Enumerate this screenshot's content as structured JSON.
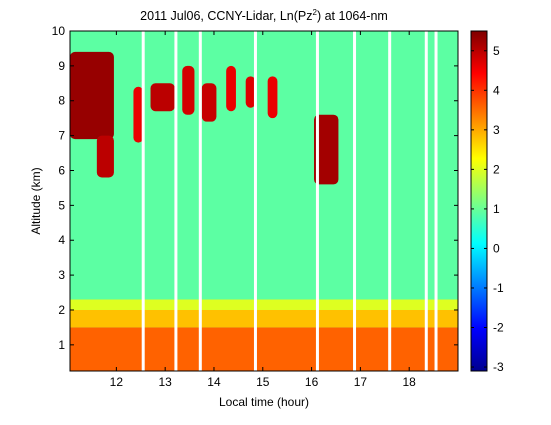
{
  "chart_data": {
    "type": "heatmap",
    "title_prefix": "2011 Jul06, CCNY-Lidar, Ln(Pz",
    "title_sup": "2",
    "title_suffix": ") at 1064-nm",
    "xlabel": "Local time (hour)",
    "ylabel": "Altitude (km)",
    "xlim": [
      11.05,
      19.0
    ],
    "ylim": [
      0.25,
      10
    ],
    "clim": [
      -3.1,
      5.5
    ],
    "x_ticks": [
      12,
      13,
      14,
      15,
      16,
      17,
      18
    ],
    "y_ticks": [
      1,
      2,
      3,
      4,
      5,
      6,
      7,
      8,
      9,
      10
    ],
    "colorbar_ticks": [
      5,
      4,
      3,
      2,
      1,
      0,
      -1,
      -2,
      -3
    ],
    "colormap": "jet",
    "background_value": 0.9,
    "boundary_layer": [
      {
        "alt_low": 0.25,
        "alt_high": 1.5,
        "value": 3.6
      },
      {
        "alt_low": 1.5,
        "alt_high": 2.0,
        "value": 2.8
      },
      {
        "alt_low": 2.0,
        "alt_high": 2.3,
        "value": 2.0
      }
    ],
    "cloud_layers": [
      {
        "t_start": 11.05,
        "t_end": 11.95,
        "alt_low": 6.9,
        "alt_high": 9.4,
        "value": 5.3
      },
      {
        "t_start": 11.6,
        "t_end": 11.95,
        "alt_low": 5.8,
        "alt_high": 7.0,
        "value": 5.0
      },
      {
        "t_start": 12.35,
        "t_end": 12.55,
        "alt_low": 6.8,
        "alt_high": 8.4,
        "value": 4.6
      },
      {
        "t_start": 12.7,
        "t_end": 13.2,
        "alt_low": 7.7,
        "alt_high": 8.5,
        "value": 5.0
      },
      {
        "t_start": 13.35,
        "t_end": 13.6,
        "alt_low": 7.6,
        "alt_high": 9.0,
        "value": 4.8
      },
      {
        "t_start": 13.75,
        "t_end": 14.05,
        "alt_low": 7.4,
        "alt_high": 8.5,
        "value": 4.9
      },
      {
        "t_start": 14.25,
        "t_end": 14.45,
        "alt_low": 7.7,
        "alt_high": 9.0,
        "value": 4.6
      },
      {
        "t_start": 14.65,
        "t_end": 14.85,
        "alt_low": 7.8,
        "alt_high": 8.7,
        "value": 4.7
      },
      {
        "t_start": 15.1,
        "t_end": 15.3,
        "alt_low": 7.5,
        "alt_high": 8.7,
        "value": 4.6
      },
      {
        "t_start": 16.05,
        "t_end": 16.55,
        "alt_low": 5.6,
        "alt_high": 7.6,
        "value": 5.2
      }
    ],
    "data_gaps": [
      12.55,
      13.22,
      13.72,
      14.85,
      16.12,
      16.88,
      17.6,
      18.35,
      18.55
    ]
  }
}
